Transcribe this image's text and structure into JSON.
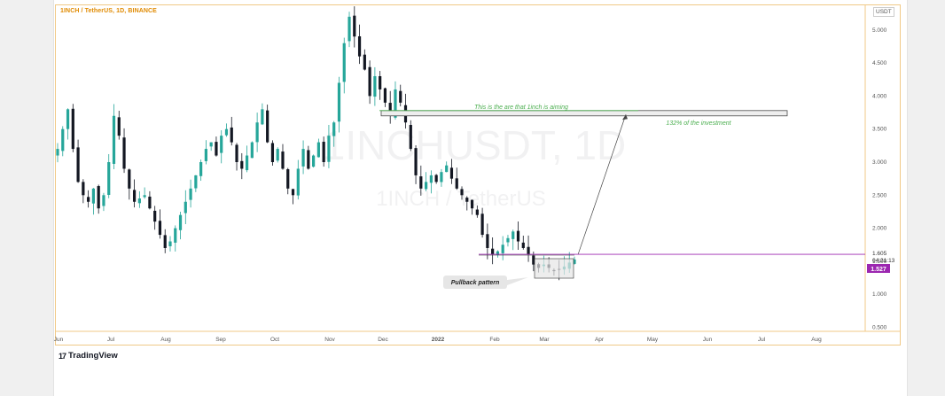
{
  "header": {
    "pair_title": "1INCH / TetherUS, 1D, BINANCE",
    "currency": "USDT"
  },
  "watermark": {
    "symbol": "1INCHUSDT, 1D",
    "name": "1INCH / TetherUS"
  },
  "footer": {
    "brand": "TradingView"
  },
  "annotations": {
    "target_text": "This is the are that 1inch is aiming",
    "investment_text": "132% of the investment",
    "pattern_label": "Pullback pattern"
  },
  "colors": {
    "accent": "#e08a00",
    "up": "#26a69a",
    "down": "#131722",
    "annotation": "#4caf50",
    "price_line": "#9c27b0"
  },
  "chart_data": {
    "type": "candlestick",
    "yticks": [
      "5.000",
      "4.500",
      "4.000",
      "3.500",
      "3.000",
      "2.500",
      "2.000",
      "1.500",
      "1.000",
      "0.500"
    ],
    "ytick_values": [
      5.0,
      4.5,
      4.0,
      3.5,
      3.0,
      2.5,
      2.0,
      1.5,
      1.0,
      0.5
    ],
    "ylim": [
      0.3,
      5.4
    ],
    "xticks": [
      "Jun",
      "Jul",
      "Aug",
      "Sep",
      "Oct",
      "Nov",
      "Dec",
      "2022",
      "Feb",
      "Mar",
      "Apr",
      "May",
      "Jun",
      "Jul",
      "Aug"
    ],
    "price_labels": {
      "current": "1.605",
      "countdown": "04:21:13",
      "last": "1.527"
    },
    "series": [
      {
        "name": "1INCH / TetherUS",
        "close": [
          3.2,
          3.5,
          3.8,
          3.2,
          2.7,
          2.5,
          2.4,
          2.6,
          2.3,
          2.5,
          3.0,
          3.7,
          3.4,
          2.9,
          2.6,
          2.4,
          2.45,
          2.5,
          2.3,
          2.1,
          1.9,
          1.7,
          1.8,
          2.0,
          2.2,
          2.4,
          2.6,
          2.8,
          3.0,
          3.2,
          3.3,
          3.1,
          3.4,
          3.5,
          3.3,
          3.0,
          2.9,
          3.1,
          3.3,
          3.6,
          3.8,
          3.3,
          3.0,
          3.2,
          2.9,
          2.6,
          2.5,
          2.9,
          3.2,
          2.9,
          3.1,
          3.3,
          3.0,
          3.4,
          3.6,
          4.2,
          4.8,
          5.2,
          4.9,
          4.6,
          4.4,
          4.0,
          4.3,
          4.1,
          3.9,
          3.7,
          4.1,
          3.9,
          3.6,
          3.2,
          2.8,
          2.6,
          2.7,
          2.8,
          2.7,
          2.85,
          2.95,
          2.75,
          2.6,
          2.5,
          2.4,
          2.3,
          2.2,
          1.9,
          1.7,
          1.6,
          1.65,
          1.75,
          1.85,
          1.95,
          1.8,
          1.7,
          1.6,
          1.45,
          1.4,
          1.45,
          1.4,
          1.35,
          1.38,
          1.42,
          1.48,
          1.527
        ]
      }
    ],
    "target_zone": [
      3.7,
      3.78
    ],
    "resistance_level": 1.605
  }
}
